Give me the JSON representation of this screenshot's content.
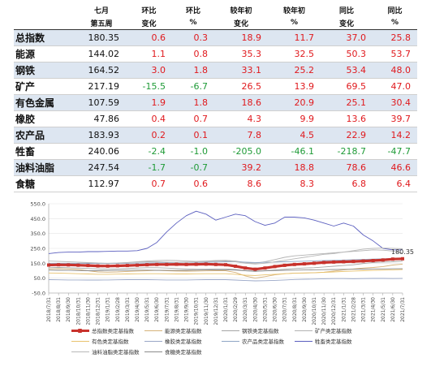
{
  "table": {
    "headers_row1": [
      "七月",
      "环比",
      "环比",
      "较年初",
      "较年初",
      "同比",
      "同比"
    ],
    "headers_row2": [
      "第五周",
      "变化",
      "%",
      "变化",
      "%",
      "变化",
      "%"
    ],
    "rows": [
      {
        "name": "总指数",
        "val": "180.35",
        "wow": "0.6",
        "wow_pct": "0.3",
        "ytd": "18.9",
        "ytd_pct": "11.7",
        "yoy": "37.0",
        "yoy_pct": "25.8"
      },
      {
        "name": "能源",
        "val": "144.02",
        "wow": "1.1",
        "wow_pct": "0.8",
        "ytd": "35.3",
        "ytd_pct": "32.5",
        "yoy": "50.3",
        "yoy_pct": "53.7"
      },
      {
        "name": "钢铁",
        "val": "164.52",
        "wow": "3.0",
        "wow_pct": "1.8",
        "ytd": "33.1",
        "ytd_pct": "25.2",
        "yoy": "53.4",
        "yoy_pct": "48.0"
      },
      {
        "name": "矿产",
        "val": "217.19",
        "wow": "-15.5",
        "wow_pct": "-6.7",
        "ytd": "26.5",
        "ytd_pct": "13.9",
        "yoy": "69.5",
        "yoy_pct": "47.0"
      },
      {
        "name": "有色金属",
        "val": "107.59",
        "wow": "1.9",
        "wow_pct": "1.8",
        "ytd": "18.6",
        "ytd_pct": "20.9",
        "yoy": "25.1",
        "yoy_pct": "30.4"
      },
      {
        "name": "橡胶",
        "val": "47.86",
        "wow": "0.4",
        "wow_pct": "0.7",
        "ytd": "4.3",
        "ytd_pct": "9.9",
        "yoy": "13.6",
        "yoy_pct": "39.7"
      },
      {
        "name": "农产品",
        "val": "183.93",
        "wow": "0.2",
        "wow_pct": "0.1",
        "ytd": "7.8",
        "ytd_pct": "4.5",
        "yoy": "22.9",
        "yoy_pct": "14.2"
      },
      {
        "name": "牲畜",
        "val": "240.06",
        "wow": "-2.4",
        "wow_pct": "-1.0",
        "ytd": "-205.0",
        "ytd_pct": "-46.1",
        "yoy": "-218.7",
        "yoy_pct": "-47.7"
      },
      {
        "name": "油料油脂",
        "val": "247.54",
        "wow": "-1.7",
        "wow_pct": "-0.7",
        "ytd": "39.2",
        "ytd_pct": "18.8",
        "yoy": "78.6",
        "yoy_pct": "46.6"
      },
      {
        "name": "食糖",
        "val": "112.97",
        "wow": "0.7",
        "wow_pct": "0.6",
        "ytd": "8.6",
        "ytd_pct": "8.3",
        "yoy": "6.8",
        "yoy_pct": "6.4"
      }
    ]
  },
  "colors": {
    "positive": "#e0191d",
    "negative": "#1f9b37",
    "row_shade": "#dde6f1"
  },
  "chart_data": {
    "type": "line",
    "ylim": [
      -50,
      550
    ],
    "yticks": [
      "550.0",
      "450.0",
      "350.0",
      "250.0",
      "150.0",
      "50.0",
      "-50.0"
    ],
    "x_tick_labels": [
      "2018/7/31",
      "2018/8/31",
      "2018/9/30",
      "2018/10/31",
      "2018/11/30",
      "2018/12/31",
      "2019/1/31",
      "2019/2/28",
      "2019/3/31",
      "2019/4/30",
      "2019/5/31",
      "2019/6/30",
      "2019/7/31",
      "2019/8/31",
      "2019/9/30",
      "2019/10/31",
      "2019/11/30",
      "2019/12/31",
      "2020/1/31",
      "2020/2/29",
      "2020/3/31",
      "2020/4/30",
      "2020/5/31",
      "2020/6/30",
      "2020/7/31",
      "2020/8/31",
      "2020/9/30",
      "2020/10/31",
      "2020/11/30",
      "2020/12/31",
      "2021/1/31",
      "2021/2/28",
      "2021/3/31",
      "2021/4/30",
      "2021/5/31",
      "2021/6/30",
      "2021/7/31"
    ],
    "annotation": "180.35",
    "series": [
      {
        "name": "总指数类定基指数",
        "color": "#c8322c",
        "width": 3.2,
        "markers": true,
        "values": [
          138,
          140,
          139,
          137,
          135,
          132,
          131,
          133,
          135,
          137,
          140,
          142,
          142,
          143,
          142,
          143,
          144,
          142,
          140,
          130,
          118,
          110,
          118,
          128,
          136,
          142,
          146,
          150,
          155,
          158,
          160,
          162,
          165,
          168,
          172,
          178,
          180.35
        ]
      },
      {
        "name": "能源类定基指数",
        "color": "#d6b27a",
        "width": 0.9,
        "values": [
          112,
          114,
          112,
          108,
          100,
          92,
          90,
          92,
          95,
          98,
          100,
          102,
          100,
          98,
          97,
          98,
          99,
          100,
          100,
          88,
          65,
          50,
          60,
          72,
          80,
          84,
          85,
          86,
          90,
          98,
          105,
          112,
          118,
          122,
          128,
          138,
          144.02
        ]
      },
      {
        "name": "钢铁类定基指数",
        "color": "#a5a5a5",
        "width": 0.9,
        "values": [
          120,
          122,
          120,
          118,
          115,
          112,
          110,
          112,
          115,
          118,
          120,
          120,
          118,
          115,
          112,
          110,
          110,
          112,
          112,
          108,
          100,
          95,
          100,
          105,
          110,
          115,
          118,
          120,
          125,
          130,
          135,
          140,
          148,
          155,
          158,
          160,
          164.52
        ]
      },
      {
        "name": "矿产类定基指数",
        "color": "#b3b3b3",
        "width": 0.9,
        "values": [
          140,
          142,
          145,
          150,
          152,
          150,
          148,
          150,
          155,
          160,
          165,
          168,
          170,
          168,
          165,
          162,
          165,
          168,
          170,
          165,
          155,
          150,
          160,
          175,
          190,
          200,
          205,
          210,
          215,
          220,
          225,
          230,
          235,
          240,
          238,
          232,
          217.19
        ]
      },
      {
        "name": "有色类定基指数",
        "color": "#e8c26e",
        "width": 0.9,
        "values": [
          85,
          84,
          82,
          80,
          78,
          76,
          76,
          77,
          78,
          79,
          80,
          80,
          79,
          78,
          78,
          79,
          80,
          80,
          80,
          76,
          70,
          68,
          72,
          76,
          80,
          83,
          85,
          87,
          89,
          92,
          95,
          98,
          100,
          102,
          104,
          106,
          107.59
        ]
      },
      {
        "name": "橡胶类定基指数",
        "color": "#9aa7c7",
        "width": 0.9,
        "values": [
          40,
          39,
          38,
          38,
          37,
          37,
          38,
          39,
          40,
          40,
          40,
          39,
          38,
          38,
          38,
          39,
          40,
          40,
          40,
          37,
          34,
          32,
          33,
          35,
          38,
          41,
          43,
          44,
          46,
          47,
          47,
          46,
          47,
          48,
          48,
          47,
          47.86
        ]
      },
      {
        "name": "农产品类定基指数",
        "color": "#8fa6c5",
        "width": 0.9,
        "values": [
          150,
          150,
          150,
          150,
          149,
          148,
          148,
          149,
          150,
          151,
          152,
          153,
          154,
          155,
          156,
          156,
          157,
          158,
          160,
          160,
          158,
          155,
          156,
          158,
          160,
          162,
          164,
          166,
          168,
          170,
          172,
          174,
          176,
          178,
          180,
          182,
          183.93
        ]
      },
      {
        "name": "牲畜类定基指数",
        "color": "#5b5fbf",
        "width": 0.9,
        "values": [
          215,
          222,
          225,
          225,
          228,
          228,
          230,
          232,
          232,
          235,
          250,
          290,
          360,
          420,
          470,
          500,
          480,
          440,
          460,
          480,
          470,
          430,
          405,
          420,
          460,
          460,
          455,
          440,
          420,
          400,
          420,
          400,
          340,
          300,
          250,
          240,
          240.06
        ]
      },
      {
        "name": "油料油脂类定基指数",
        "color": "#b8b8b8",
        "width": 0.9,
        "values": [
          165,
          163,
          160,
          158,
          155,
          152,
          150,
          152,
          155,
          158,
          160,
          160,
          158,
          156,
          158,
          160,
          162,
          164,
          166,
          160,
          150,
          145,
          150,
          160,
          170,
          180,
          190,
          200,
          210,
          215,
          225,
          235,
          245,
          250,
          252,
          250,
          247.54
        ]
      },
      {
        "name": "食糖类定基指数",
        "color": "#8c8c8c",
        "width": 0.9,
        "values": [
          104,
          103,
          102,
          101,
          100,
          100,
          101,
          102,
          103,
          104,
          104,
          103,
          102,
          102,
          103,
          104,
          105,
          106,
          106,
          104,
          100,
          98,
          99,
          101,
          103,
          104,
          105,
          106,
          107,
          108,
          109,
          110,
          111,
          112,
          112,
          113,
          112.97
        ]
      }
    ]
  }
}
